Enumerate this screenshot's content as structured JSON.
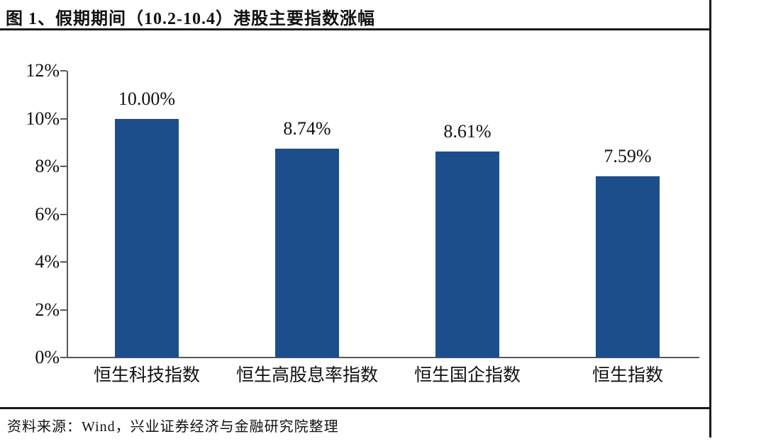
{
  "title": "图 1、假期期间（10.2-10.4）港股主要指数涨幅",
  "footer": {
    "source_text": "资料来源：Wind，兴业证券经济与金融研究院整理"
  },
  "colors": {
    "bar": "#1c4e8c",
    "axis": "#595959",
    "rule": "#1a1a1a"
  },
  "chart_data": {
    "type": "bar",
    "title": "假期期间（10.2-10.4）港股主要指数涨幅",
    "categories": [
      "恒生科技指数",
      "恒生高股息率指数",
      "恒生国企指数",
      "恒生指数"
    ],
    "values": [
      10.0,
      8.74,
      8.61,
      7.59
    ],
    "value_labels": [
      "10.00%",
      "8.74%",
      "8.61%",
      "7.59%"
    ],
    "xlabel": "",
    "ylabel": "",
    "ylim": [
      0,
      12
    ],
    "y_tick_step": 2,
    "y_tick_labels": [
      "0%",
      "2%",
      "4%",
      "6%",
      "8%",
      "10%",
      "12%"
    ],
    "grid": false,
    "legend": false
  }
}
